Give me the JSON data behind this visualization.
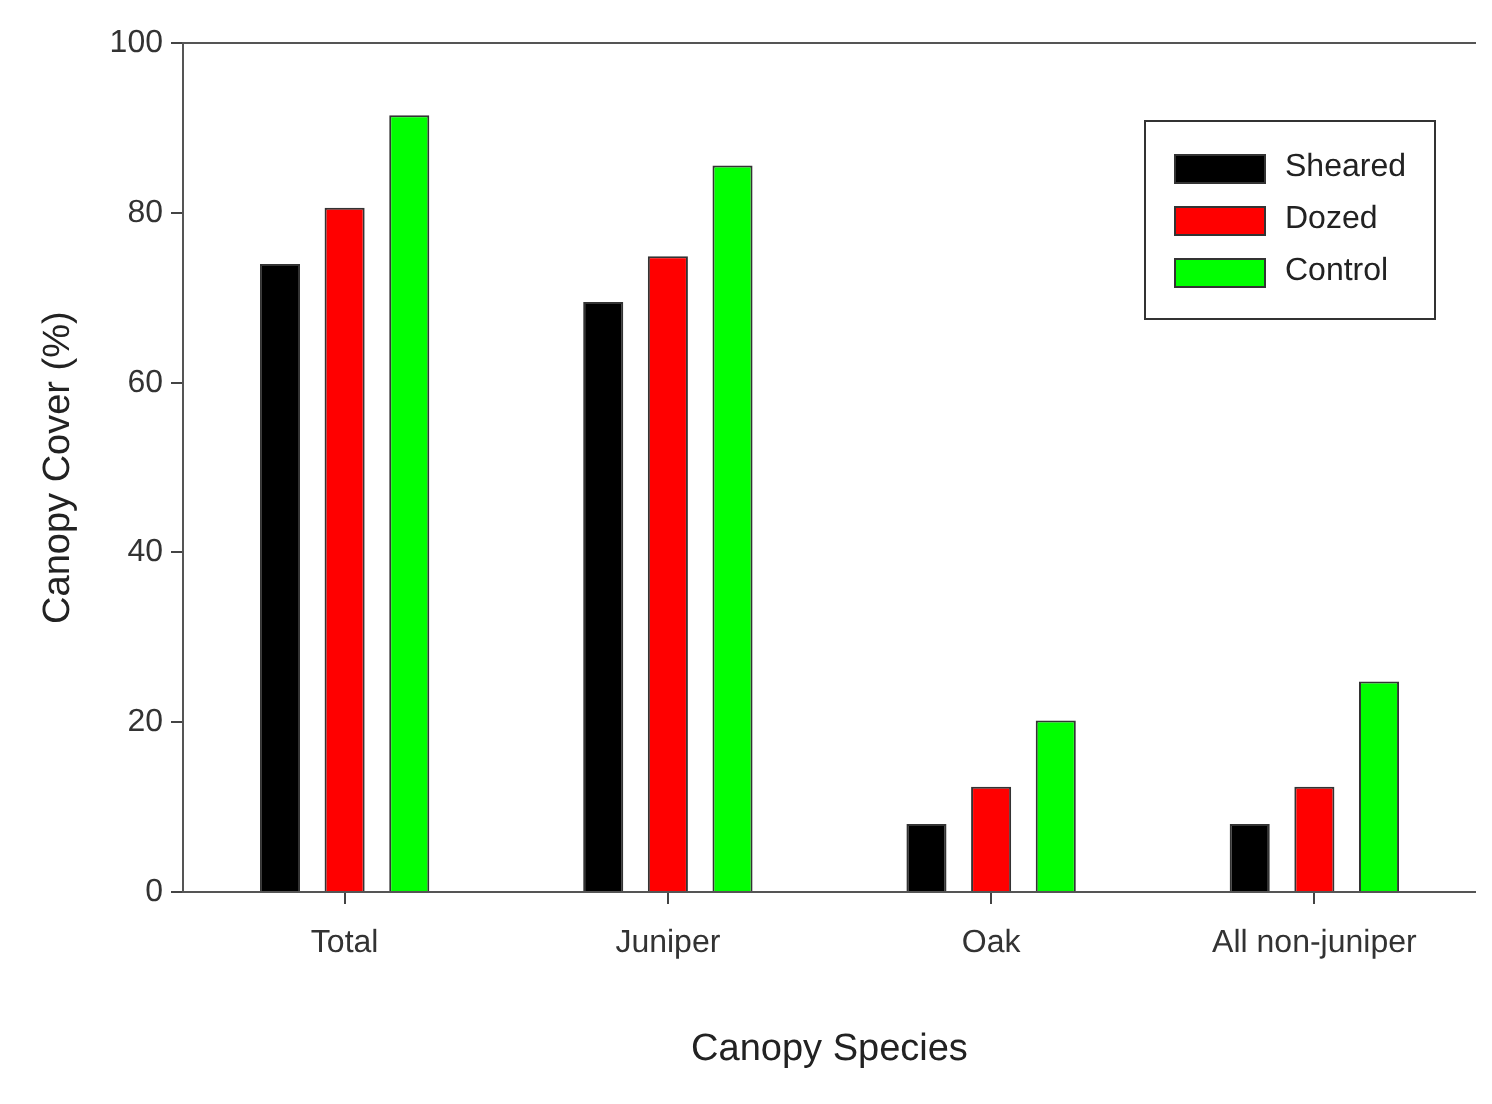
{
  "chart_data": {
    "type": "bar",
    "xlabel": "Canopy Species",
    "ylabel": "Canopy Cover (%)",
    "categories": [
      "Total",
      "Juniper",
      "Oak",
      "All non-juniper"
    ],
    "series": [
      {
        "name": "Sheared",
        "color": "#000000",
        "values": [
          74.0,
          69.5,
          8.0,
          8.0
        ]
      },
      {
        "name": "Dozed",
        "color": "#ff0000",
        "values": [
          80.6,
          74.9,
          12.4,
          12.4
        ]
      },
      {
        "name": "Control",
        "color": "#00ff00",
        "values": [
          91.5,
          85.6,
          20.2,
          24.8
        ]
      }
    ],
    "ylim": [
      0,
      100
    ],
    "yticks": [
      0,
      20,
      40,
      60,
      80,
      100
    ],
    "grid": false,
    "legend": "top right"
  }
}
